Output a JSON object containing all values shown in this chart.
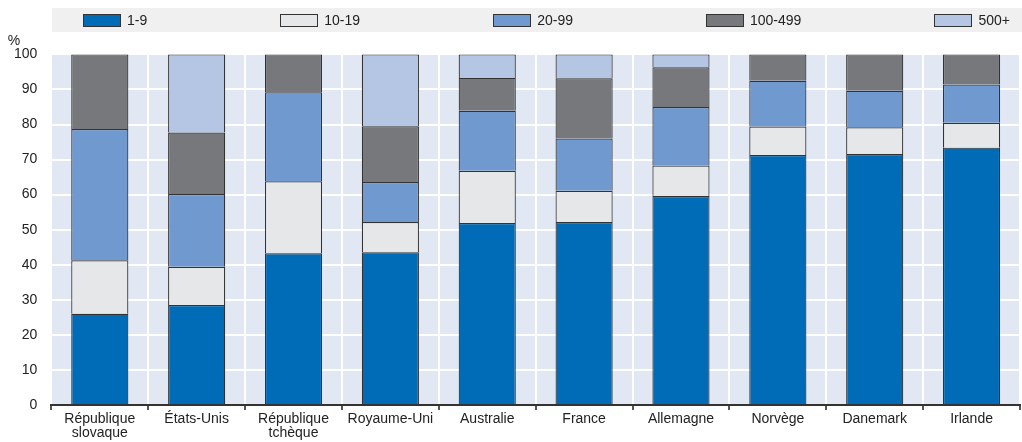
{
  "chart_data": {
    "type": "bar",
    "stacked": true,
    "ylabel": "%",
    "categories": [
      "République slovaque",
      "États-Unis",
      "République tchèque",
      "Royaume-Uni",
      "Australie",
      "France",
      "Allemagne",
      "Norvège",
      "Danemark",
      "Irlande"
    ],
    "series": [
      {
        "name": "1-9",
        "color": "#006bb6",
        "values": [
          26,
          28.5,
          43.3,
          43.6,
          51.9,
          52.2,
          59.6,
          71.3,
          71.6,
          73.4
        ]
      },
      {
        "name": "10-19",
        "color": "#e6e7e9",
        "values": [
          15.3,
          10.9,
          20.5,
          8.6,
          14.9,
          8.9,
          8.7,
          8.1,
          7.6,
          7.1
        ]
      },
      {
        "name": "20-99",
        "color": "#7099cf",
        "values": [
          37.4,
          20.8,
          25.4,
          11.4,
          17.1,
          14.9,
          16.7,
          13.1,
          10.4,
          10.9
        ]
      },
      {
        "name": "100-499",
        "color": "#77787b",
        "values": [
          21.3,
          17.5,
          10.8,
          15.9,
          9.4,
          17.2,
          11.3,
          7.5,
          10.4,
          8.6
        ]
      },
      {
        "name": "500+",
        "color": "#b4c6e4",
        "values": [
          0,
          22.3,
          0,
          20.5,
          6.7,
          6.8,
          3.7,
          0,
          0,
          0
        ]
      }
    ],
    "ylim": [
      0,
      100
    ],
    "yticks": [
      0,
      10,
      20,
      30,
      40,
      50,
      60,
      70,
      80,
      90,
      100
    ],
    "grid": true,
    "legend": "top"
  }
}
